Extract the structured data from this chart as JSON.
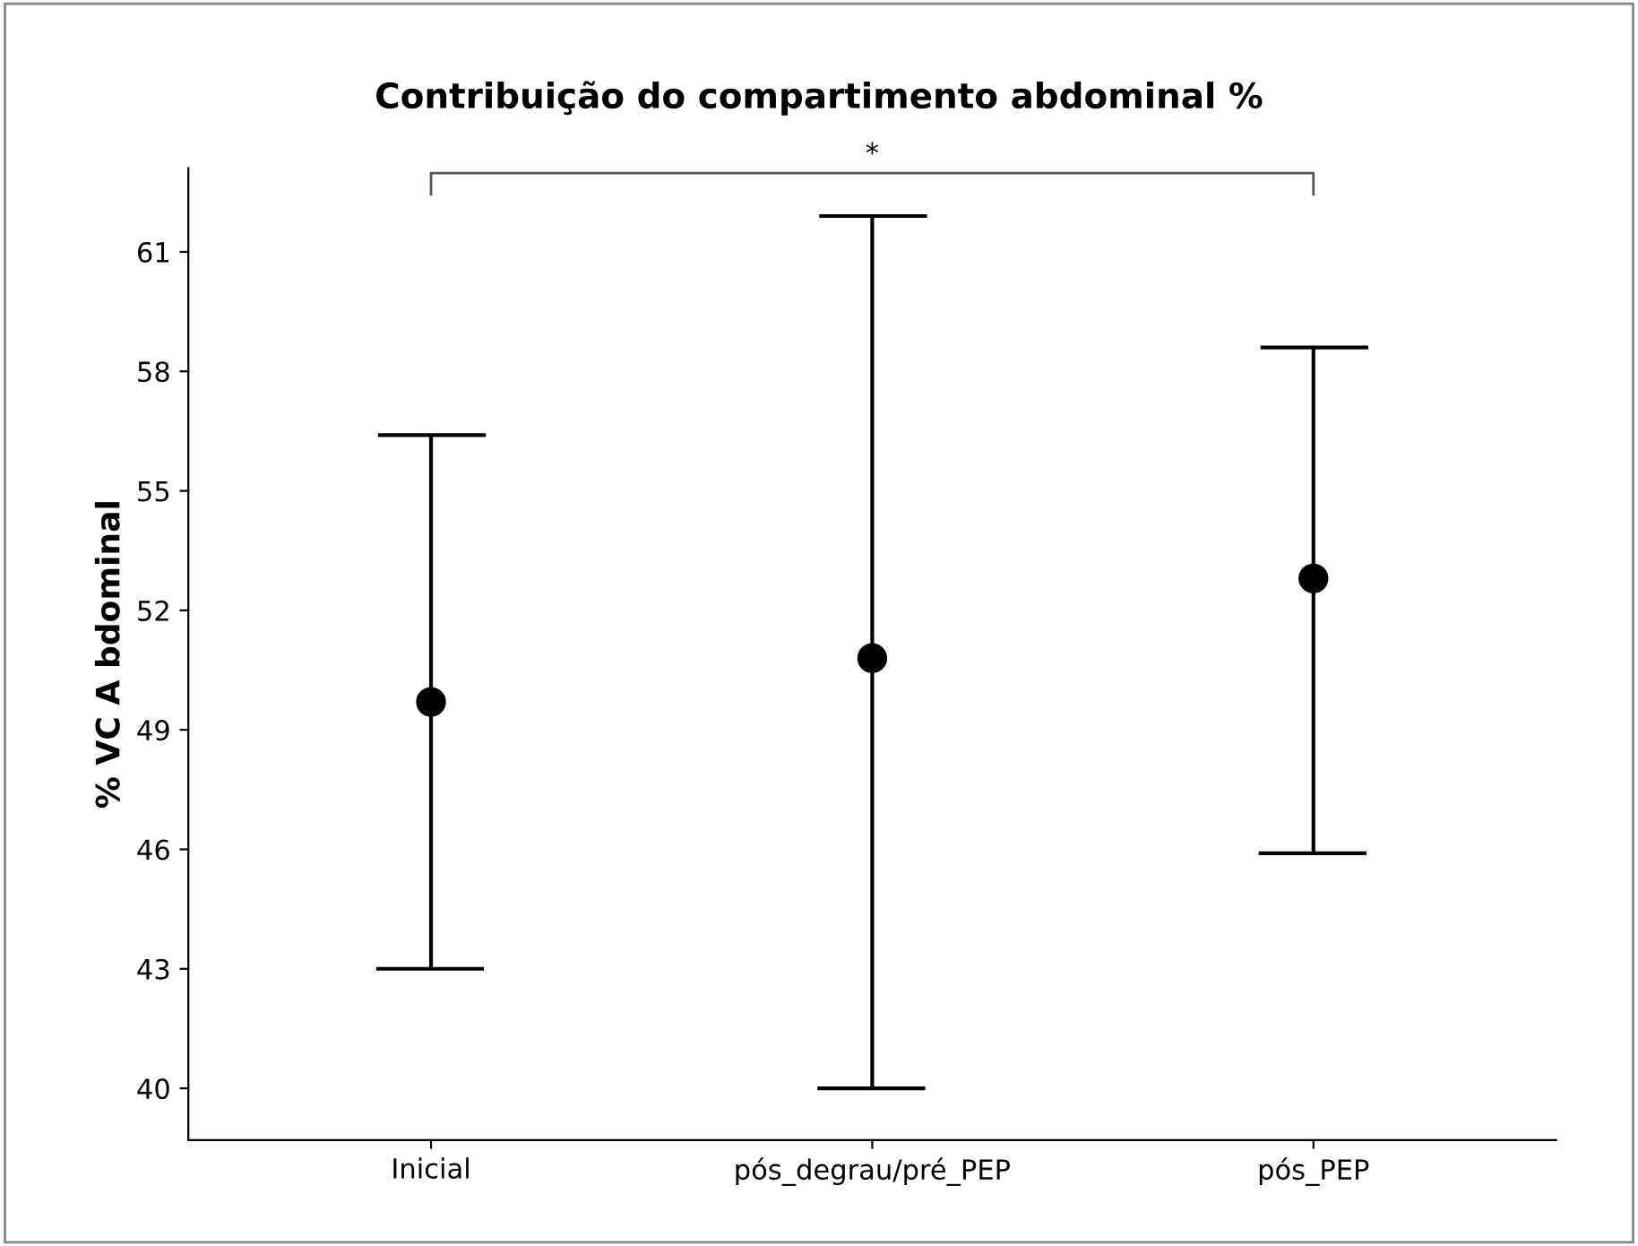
{
  "chart_data": {
    "type": "scatter",
    "title": "Contribuição do compartimento abdominal %",
    "ylabel": "% VC A bdominal",
    "categories": [
      "Inicial",
      "pós_degrau/pré_PEP",
      "pós_PEP"
    ],
    "values": [
      49.7,
      50.8,
      52.8
    ],
    "errors": [
      [
        43.0,
        56.4
      ],
      [
        40.0,
        61.9
      ],
      [
        45.9,
        58.6
      ]
    ],
    "color": "#000000",
    "marker": "circle",
    "ylim": [
      38.7,
      63.1
    ],
    "yticks": [
      40,
      43,
      46,
      49,
      52,
      55,
      58,
      61
    ],
    "grid": false,
    "legend": false,
    "annotations": [
      "*"
    ]
  }
}
